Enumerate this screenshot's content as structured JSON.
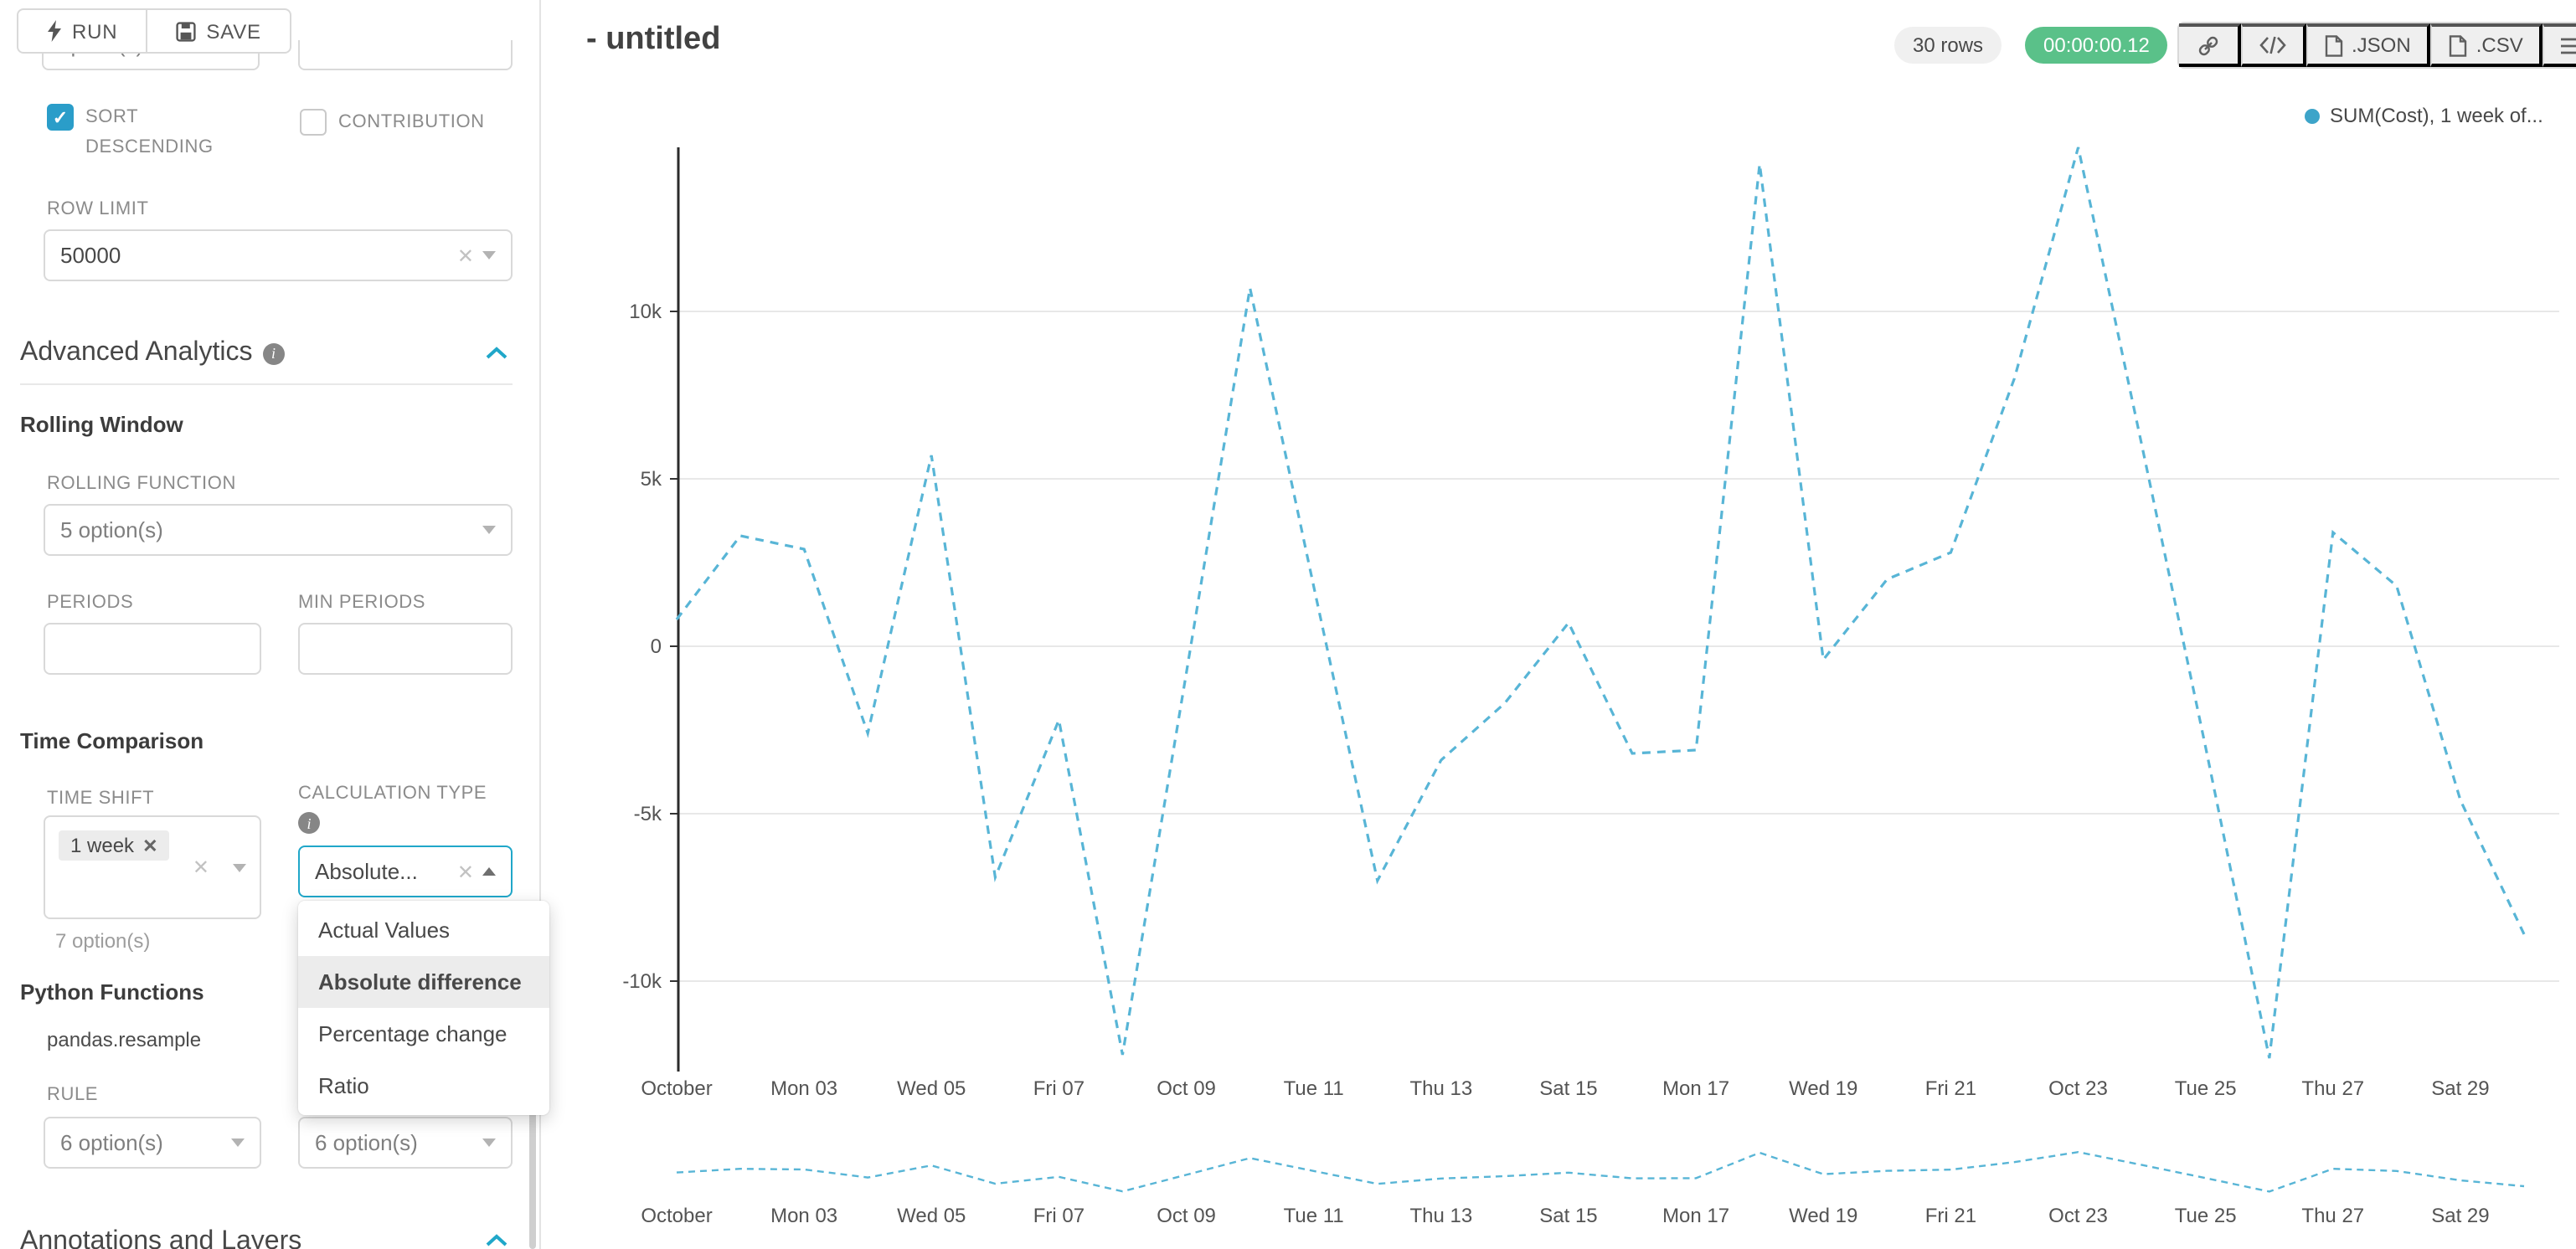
{
  "toolbar": {
    "run_label": "RUN",
    "save_label": "SAVE"
  },
  "panel": {
    "cropped_select_value": "option(s)",
    "sort_descending_label": "SORT DESCENDING",
    "contribution_label": "CONTRIBUTION",
    "row_limit_label": "ROW LIMIT",
    "row_limit_value": "50000",
    "advanced_analytics_title": "Advanced Analytics",
    "rolling_window_title": "Rolling Window",
    "rolling_function_label": "ROLLING FUNCTION",
    "rolling_function_value": "5 option(s)",
    "periods_label": "PERIODS",
    "min_periods_label": "MIN PERIODS",
    "time_comparison_title": "Time Comparison",
    "time_shift_label": "TIME SHIFT",
    "time_shift_tag": "1 week",
    "time_shift_helper": "7 option(s)",
    "calculation_type_label": "CALCULATION TYPE",
    "calculation_type_value": "Absolute...",
    "dropdown_options": [
      "Actual Values",
      "Absolute difference",
      "Percentage change",
      "Ratio"
    ],
    "dropdown_selected": "Absolute difference",
    "python_functions_title": "Python Functions",
    "pandas_resample_label": "pandas.resample",
    "rule_label": "RULE",
    "rule_value": "6 option(s)",
    "method_value": "6 option(s)",
    "annotations_title": "Annotations and Layers"
  },
  "header": {
    "title": "- untitled",
    "rows_badge": "30 rows",
    "time_badge": "00:00:00.12",
    "json_label": ".JSON",
    "csv_label": ".CSV"
  },
  "legend_label": "SUM(Cost), 1 week of...",
  "colors": {
    "accent": "#20a7c9",
    "success_badge": "#5ac189",
    "line": "#58b5d6"
  },
  "chart_data": {
    "type": "line",
    "title": "- untitled",
    "legend": "SUM(Cost), 1 week of...",
    "x_points": 30,
    "x_tick_labels": [
      "October",
      "Mon 03",
      "Wed 05",
      "Fri 07",
      "Oct 09",
      "Tue 11",
      "Thu 13",
      "Sat 15",
      "Mon 17",
      "Wed 19",
      "Fri 21",
      "Oct 23",
      "Tue 25",
      "Thu 27",
      "Sat 29"
    ],
    "x_tick_indices": [
      0,
      2,
      4,
      6,
      8,
      10,
      12,
      14,
      16,
      18,
      20,
      22,
      24,
      26,
      28
    ],
    "y_ticks": [
      {
        "label": "10k",
        "value": 10000
      },
      {
        "label": "5k",
        "value": 5000
      },
      {
        "label": "0",
        "value": 0
      },
      {
        "label": "-5k",
        "value": -5000
      },
      {
        "label": "-10k",
        "value": -10000
      }
    ],
    "ylim": [
      -13000,
      15000
    ],
    "grid": true,
    "line_style": "dashed",
    "series": [
      {
        "name": "SUM(Cost), 1 week of...",
        "color": "#58b5d6",
        "values": [
          800,
          3300,
          2900,
          -2600,
          5700,
          -6900,
          -2200,
          -12200,
          -800,
          10700,
          1800,
          -7000,
          -3400,
          -1700,
          700,
          -3200,
          -3100,
          14400,
          -400,
          2000,
          2800,
          8000,
          14900,
          6000,
          -3000,
          -12300,
          3400,
          1800,
          -4600,
          -8600
        ]
      }
    ],
    "mini_chart": "same series repeated as overview strip below main chart"
  }
}
